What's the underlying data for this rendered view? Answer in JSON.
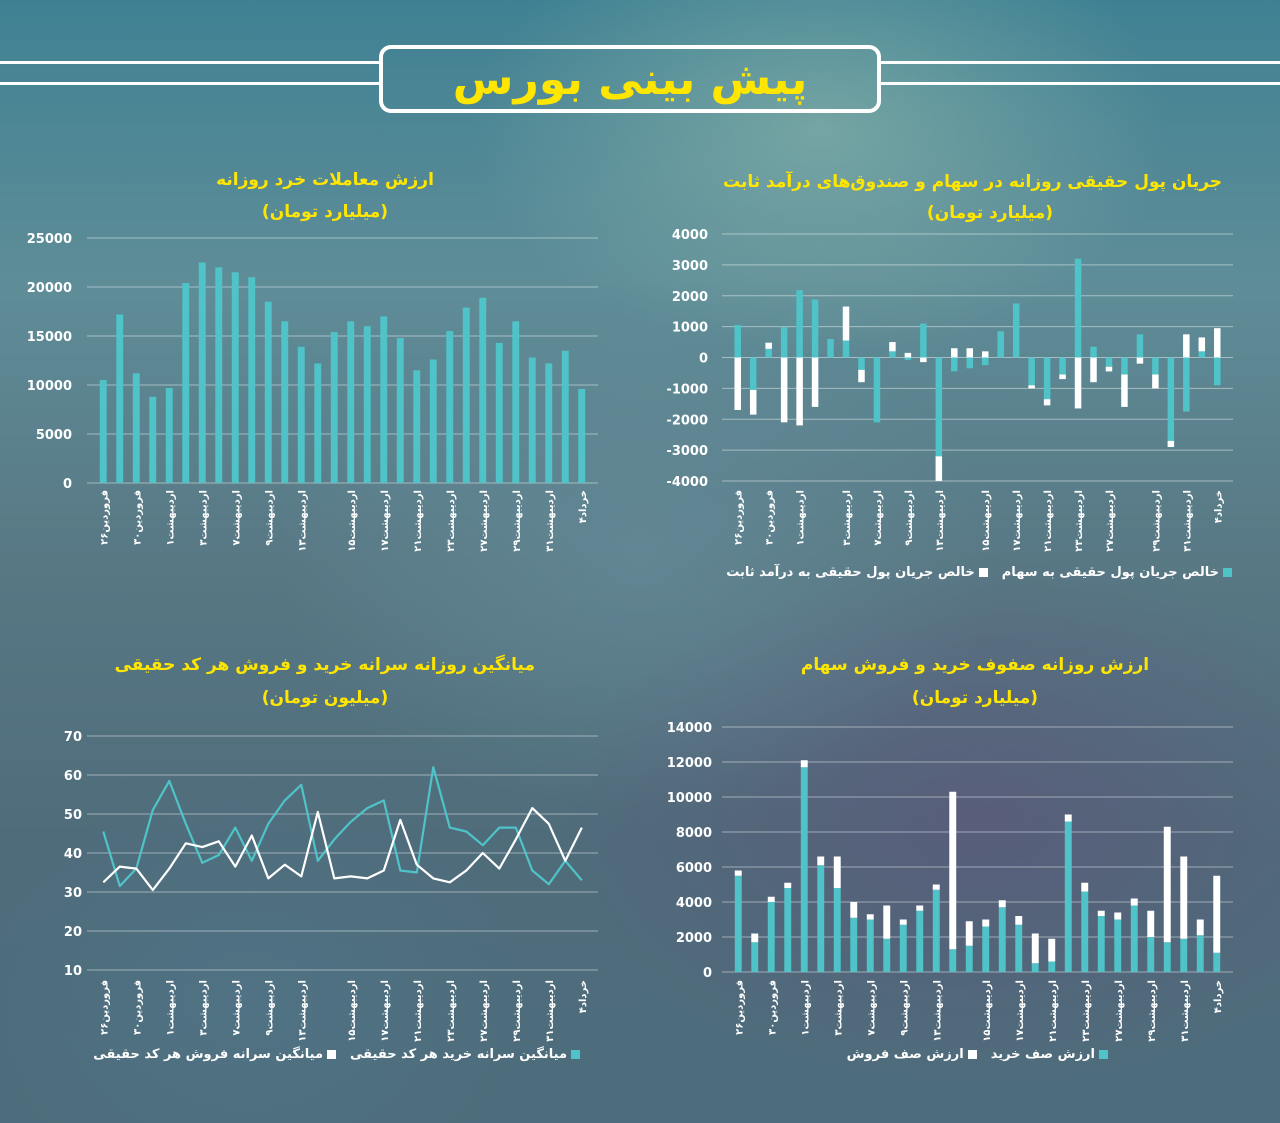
{
  "header": {
    "title": "پیش بینی بورس"
  },
  "colors": {
    "teal": "#4fc3c8",
    "white": "#ffffff",
    "yellow": "#ffe600"
  },
  "chart_data": [
    {
      "id": "retail",
      "type": "bar",
      "title": "ارزش معاملات خرد روزانه",
      "subtitle": "(میلیارد تومان)",
      "ylim": [
        0,
        25000
      ],
      "yticks": [
        "25000",
        "20000",
        "15000",
        "10000",
        "5000",
        "0"
      ],
      "x_labels": [
        "فروردین۲۶",
        "فروردین۳۰",
        "اردیبهشت۱",
        "اردیبهشت۳",
        "اردیبهشت۷",
        "اردیبهشت۹",
        "اردیبهشت۱۳",
        "اردیبهشت۱۵",
        "اردیبهشت۱۷",
        "اردیبهشت۲۱",
        "اردیبهشت۲۳",
        "اردیبهشت۲۷",
        "اردیبهشت۲۹",
        "اردیبهشت۳۱",
        "خرداد۴"
      ],
      "series": [
        {
          "values": [
            10500,
            17200,
            11200,
            8800,
            9700,
            20400,
            22500,
            22000,
            21500,
            21000,
            18500,
            16500,
            13900,
            12200,
            15400,
            16500,
            16000,
            17000,
            14800,
            11500,
            12600,
            15500,
            17900,
            18900,
            14300,
            16500,
            12800,
            12200,
            13500,
            9600
          ]
        }
      ]
    },
    {
      "id": "flow",
      "type": "bar",
      "title": "جریان پول حقیقی روزانه در سهام و صندوق‌های درآمد ثابت",
      "subtitle": "(میلیارد تومان)",
      "ylim": [
        -4000,
        4000
      ],
      "yticks": [
        "4000",
        "3000",
        "2000",
        "1000",
        "0",
        "-1000",
        "-2000",
        "-3000",
        "-4000"
      ],
      "x_labels": [
        "فروردین۲۶",
        "فروردین۳۰",
        "اردیبهشت۱",
        "اردیبهشت۳",
        "اردیبهشت۷",
        "اردیبهشت۹",
        "اردیبهشت۱۳",
        "اردیبهشت۱۵",
        "اردیبهشت۱۷",
        "اردیبهشت۲۱",
        "اردیبهشت۲۳",
        "اردیبهشت۲۷",
        "اردیبهشت۲۹",
        "اردیبهشت۳۱",
        "خرداد۴"
      ],
      "legend": [
        "خالص جریان پول حقیقی به سهام",
        "خالص جریان پول حقیقی به درآمد ثابت"
      ],
      "series": [
        {
          "name": "خالص جریان پول حقیقی به سهام",
          "values": [
            1050,
            -1050,
            280,
            980,
            2180,
            1880,
            600,
            550,
            -400,
            -2100,
            200,
            -80,
            1100,
            -3200,
            -450,
            -350,
            -250,
            850,
            1750,
            -900,
            -1350,
            -550,
            3200,
            350,
            -300,
            -550,
            750,
            -550,
            -2700,
            -1750,
            200,
            -900
          ]
        },
        {
          "name": "خالص جریان پول حقیقی به درآمد ثابت",
          "values": [
            -1700,
            -800,
            200,
            -2100,
            -2200,
            -1600,
            0,
            1100,
            -400,
            0,
            300,
            150,
            -150,
            -800,
            300,
            300,
            200,
            0,
            0,
            -100,
            -200,
            -150,
            -1650,
            -800,
            -150,
            -1050,
            -200,
            -450,
            -200,
            750,
            450,
            950
          ]
        }
      ]
    },
    {
      "id": "per_capita",
      "type": "line",
      "title": "میانگین روزانه سرانه خرید و فروش هر کد حقیقی",
      "subtitle": "(میلیون تومان)",
      "ylim": [
        10,
        70
      ],
      "yticks": [
        "70",
        "60",
        "50",
        "40",
        "30",
        "20",
        "10"
      ],
      "x_labels": [
        "فروردین۲۶",
        "فروردین۳۰",
        "اردیبهشت۱",
        "اردیبهشت۳",
        "اردیبهشت۷",
        "اردیبهشت۹",
        "اردیبهشت۱۳",
        "اردیبهشت۱۵",
        "اردیبهشت۱۷",
        "اردیبهشت۲۱",
        "اردیبهشت۲۳",
        "اردیبهشت۲۷",
        "اردیبهشت۲۹",
        "اردیبهشت۳۱",
        "خرداد۴"
      ],
      "legend": [
        "میانگین سرانه خرید هر کد حقیقی",
        "میانگین سرانه فروش هر کد حقیقی"
      ],
      "series": [
        {
          "name": "میانگین سرانه خرید هر کد حقیقی",
          "values": [
            45.5,
            31.5,
            36,
            51,
            58.5,
            47.5,
            37.5,
            39.5,
            46.5,
            38,
            47.5,
            53.5,
            57.5,
            38,
            43.5,
            48,
            51.5,
            53.5,
            35.5,
            35,
            62,
            46.5,
            45.5,
            42,
            46.5,
            46.5,
            35.5,
            32,
            38,
            33
          ]
        },
        {
          "name": "میانگین سرانه فروش هر کد حقیقی",
          "values": [
            32.5,
            36.5,
            36,
            30.5,
            36,
            42.5,
            41.5,
            43,
            36.5,
            44.5,
            33.5,
            37,
            34,
            50.5,
            33.5,
            34,
            33.5,
            35.5,
            48.5,
            37,
            33.5,
            32.5,
            35.5,
            40,
            36,
            43.5,
            51.5,
            47.5,
            38,
            46.5
          ]
        }
      ]
    },
    {
      "id": "queues",
      "type": "bar",
      "title": "ارزش روزانه صفوف خرید و فروش سهام",
      "subtitle": "(میلیارد تومان)",
      "ylim": [
        0,
        14000
      ],
      "yticks": [
        "14000",
        "12000",
        "10000",
        "8000",
        "6000",
        "4000",
        "2000",
        "0"
      ],
      "x_labels": [
        "فروردین۲۶",
        "فروردین۳۰",
        "اردیبهشت۱",
        "اردیبهشت۳",
        "اردیبهشت۷",
        "اردیبهشت۹",
        "اردیبهشت۱۳",
        "اردیبهشت۱۵",
        "اردیبهشت۱۷",
        "اردیبهشت۲۱",
        "اردیبهشت۲۳",
        "اردیبهشت۲۷",
        "اردیبهشت۲۹",
        "اردیبهشت۳۱",
        "خرداد۴"
      ],
      "legend": [
        "ارزش صف خرید",
        "ارزش صف فروش"
      ],
      "series": [
        {
          "name": "ارزش صف خرید",
          "values": [
            5500,
            1700,
            4000,
            4800,
            11700,
            6100,
            4800,
            3100,
            3000,
            1900,
            2700,
            3500,
            4700,
            1300,
            1500,
            2600,
            3700,
            2700,
            500,
            600,
            8600,
            4600,
            3200,
            3000,
            3800,
            2000,
            1700,
            1900,
            2100,
            1100
          ]
        },
        {
          "name": "ارزش صف فروش",
          "values": [
            300,
            500,
            300,
            300,
            400,
            500,
            1800,
            900,
            300,
            1900,
            300,
            300,
            300,
            9000,
            1400,
            400,
            400,
            500,
            1700,
            1300,
            400,
            500,
            300,
            400,
            400,
            1500,
            6600,
            4700,
            900,
            4400
          ]
        }
      ]
    }
  ]
}
